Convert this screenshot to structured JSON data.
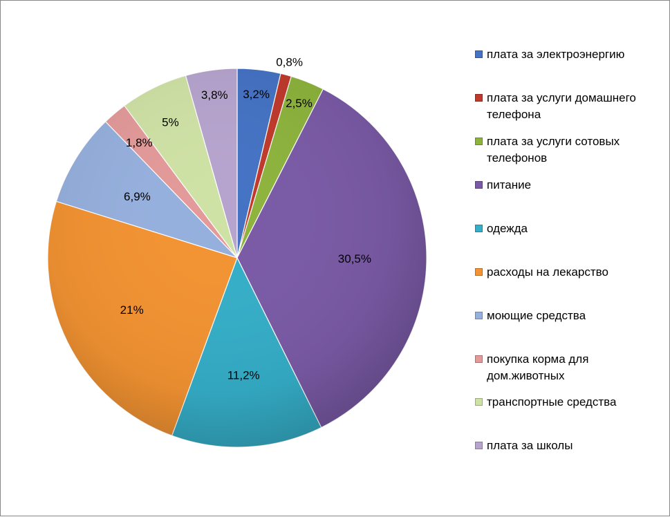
{
  "chart_data": {
    "type": "pie",
    "slices": [
      {
        "label": "плата за электроэнергию",
        "value": 3.2,
        "display": "3,2%",
        "color": "#4472C4"
      },
      {
        "label": "плата за услуги домашнего телефона",
        "value": 0.8,
        "display": "0,8%",
        "color": "#C0392B"
      },
      {
        "label": "плата за услуги сотовых телефонов",
        "value": 2.5,
        "display": "2,5%",
        "color": "#8DB33C"
      },
      {
        "label": "питание",
        "value": 30.5,
        "display": "30,5%",
        "color": "#7A5AA6"
      },
      {
        "label": "одежда",
        "value": 11.2,
        "display": "11,2%",
        "color": "#35AEC8"
      },
      {
        "label": "расходы на лекарство",
        "value": 21,
        "display": "21%",
        "color": "#F39332"
      },
      {
        "label": "моющие средства",
        "value": 6.9,
        "display": "6,9%",
        "color": "#96B0DE"
      },
      {
        "label": "покупка корма для дом.животных",
        "value": 1.8,
        "display": "1,8%",
        "color": "#E39A99"
      },
      {
        "label": "транспортные средства",
        "value": 5,
        "display": "5%",
        "color": "#CFE2A5"
      },
      {
        "label": "плата за школы",
        "value": 3.8,
        "display": "3,8%",
        "color": "#B6A4CE"
      }
    ],
    "legend_position": "right",
    "title": ""
  },
  "legend": {
    "items": [
      {
        "line1": "плата за электроэнергию",
        "line2": ""
      },
      {
        "line1": "плата за услуги домашнего",
        "line2": "телефона"
      },
      {
        "line1": "плата за услуги сотовых",
        "line2": "телефонов"
      },
      {
        "line1": "питание",
        "line2": ""
      },
      {
        "line1": "одежда",
        "line2": ""
      },
      {
        "line1": "расходы на лекарство",
        "line2": ""
      },
      {
        "line1": "моющие средства",
        "line2": ""
      },
      {
        "line1": "покупка корма для",
        "line2": "дом.животных"
      },
      {
        "line1": "транспортные средства",
        "line2": ""
      },
      {
        "line1": "плата за школы",
        "line2": ""
      }
    ]
  }
}
